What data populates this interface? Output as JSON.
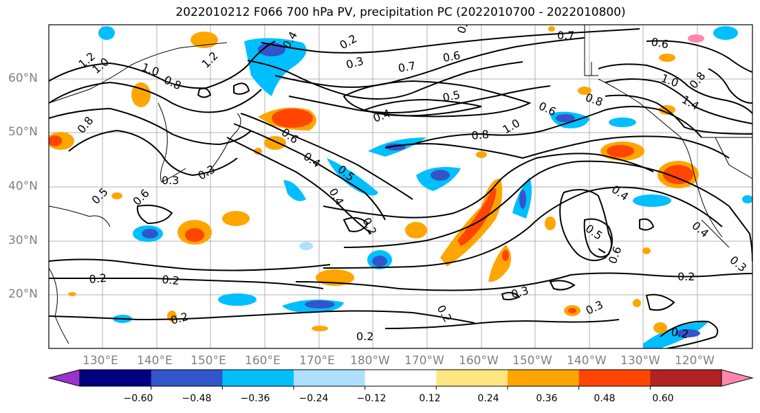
{
  "title": "2022010212 F066 700 hPa PV, precipitation PC (2022010700 - 2022010800)",
  "lat_labels": [
    "60°N",
    "50°N",
    "40°N",
    "30°N",
    "20°N"
  ],
  "lon_labels": [
    "130°E",
    "140°E",
    "150°E",
    "160°E",
    "170°E",
    "180°W",
    "170°W",
    "160°W",
    "150°W",
    "140°W",
    "130°W",
    "120°W"
  ],
  "colorbar": {
    "ticks": [
      "−0.60",
      "−0.48",
      "−0.36",
      "−0.24",
      "−0.12",
      "0.12",
      "0.24",
      "0.36",
      "0.48",
      "0.60"
    ],
    "colors": [
      "#9933cc",
      "#000080",
      "#3355cc",
      "#00bfff",
      "#b0e0ff",
      "#ffffff",
      "#ffe680",
      "#ffa500",
      "#ff4500",
      "#b22222",
      "#ff88aa"
    ]
  },
  "contour_labels": [
    "0.2",
    "0.3",
    "0.4",
    "0.5",
    "0.6",
    "0.7",
    "0.8",
    "1.0",
    "1.2",
    "1.4"
  ]
}
